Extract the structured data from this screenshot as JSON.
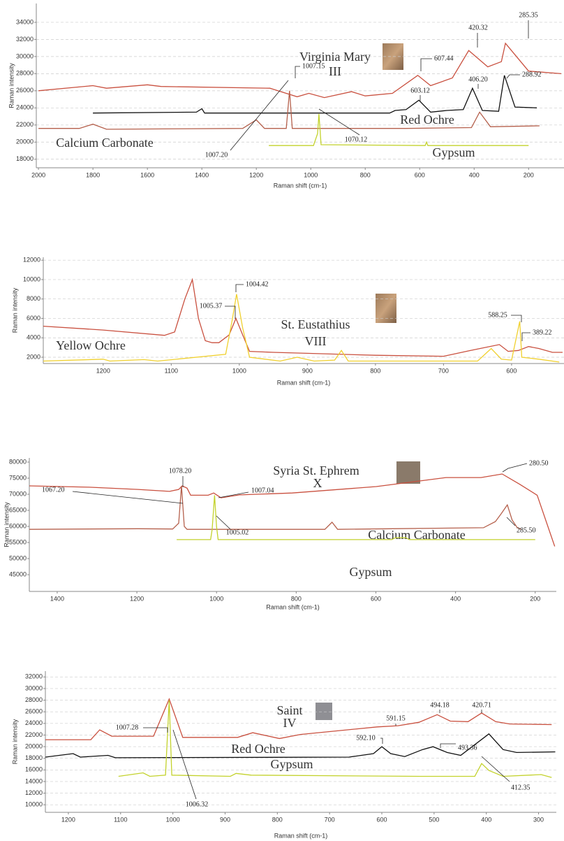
{
  "chart_data": [
    {
      "type": "line",
      "x_label": "Raman shift (cm-1)",
      "y_label": "Raman intensity",
      "xlim": [
        2008,
        70
      ],
      "ylim": [
        17000,
        36200
      ],
      "xticks": [
        2000,
        1800,
        1600,
        1400,
        1200,
        1000,
        800,
        600,
        400,
        200
      ],
      "yticks": [
        18000,
        20000,
        22000,
        24000,
        26000,
        28000,
        30000,
        32000,
        34000
      ],
      "grid": true,
      "series": [
        {
          "name": [
            "Virginia Mary",
            "III"
          ],
          "color": "#c9503f",
          "x": [
            2000,
            1800,
            1750,
            1600,
            1550,
            1150,
            1050,
            1007,
            950,
            850,
            800,
            700,
            607,
            560,
            480,
            420,
            350,
            300,
            285,
            200,
            80
          ],
          "values": [
            26000,
            26600,
            26300,
            26700,
            26500,
            26300,
            25300,
            25700,
            25200,
            25900,
            25400,
            25700,
            27800,
            26600,
            27500,
            30700,
            28800,
            29400,
            31550,
            28300,
            28000
          ]
        },
        {
          "name": "Red Ochre",
          "color": "#111111",
          "x": [
            1800,
            1420,
            1400,
            1390,
            710,
            690,
            650,
            603,
            560,
            500,
            440,
            406,
            370,
            310,
            289,
            250,
            170
          ],
          "values": [
            23400,
            23500,
            23900,
            23400,
            23400,
            23700,
            23800,
            24900,
            23500,
            23700,
            23800,
            26300,
            23700,
            23600,
            27800,
            24100,
            24000
          ]
        },
        {
          "name": "Calcium Carbonate",
          "color": "#b5604c",
          "x": [
            2000,
            1850,
            1800,
            1750,
            1250,
            1200,
            1170,
            1090,
            1078,
            1068,
            650,
            410,
            380,
            340,
            160
          ],
          "values": [
            21600,
            21600,
            22100,
            21500,
            21600,
            22600,
            21600,
            21600,
            26000,
            21600,
            21600,
            21700,
            23500,
            21800,
            21900
          ]
        },
        {
          "name": "Gypsum",
          "color": "#c3d22c",
          "x": [
            1154,
            990,
            975,
            970,
            962,
            580,
            575,
            570,
            200
          ],
          "values": [
            19600,
            19600,
            21000,
            23300,
            19700,
            19600,
            20000,
            19600,
            19600
          ]
        }
      ],
      "annotations": [
        "420.32",
        "285.35",
        "607.44",
        "1007.15",
        "603.12",
        "406.20",
        "288.92",
        "1070.12",
        "1007.20"
      ]
    },
    {
      "type": "line",
      "x_label": "Raman shift (cm-1)",
      "y_label": "Raman intensity",
      "xlim": [
        1288,
        523
      ],
      "ylim": [
        1350,
        12300
      ],
      "xticks": [
        1200,
        1100,
        1000,
        900,
        800,
        700,
        600
      ],
      "yticks": [
        2000,
        4000,
        6000,
        8000,
        10000,
        12000
      ],
      "grid": true,
      "series": [
        {
          "name": [
            "St. Eustathius",
            "VIII"
          ],
          "color": "#c9503f",
          "x": [
            1288,
            1200,
            1110,
            1095,
            1080,
            1069,
            1060,
            1050,
            1040,
            1030,
            1015,
            1005,
            995,
            985,
            950,
            800,
            700,
            660,
            618,
            605,
            590,
            575,
            560,
            540,
            525
          ],
          "values": [
            5200,
            4800,
            4250,
            4600,
            8000,
            10000,
            6000,
            3700,
            3500,
            3500,
            4300,
            6000,
            4300,
            2600,
            2500,
            2200,
            2100,
            2700,
            3300,
            2600,
            2700,
            3100,
            2900,
            2500,
            2500
          ]
        },
        {
          "name": "Yellow Ochre",
          "color": "#f0d02e",
          "x": [
            1288,
            1200,
            1190,
            1140,
            1120,
            1020,
            1010,
            1004,
            995,
            985,
            940,
            915,
            890,
            860,
            850,
            840,
            650,
            630,
            615,
            600,
            588,
            585,
            560,
            530
          ],
          "values": [
            1600,
            1800,
            1600,
            1750,
            1600,
            2300,
            6000,
            8500,
            5000,
            2000,
            1600,
            2000,
            1600,
            1700,
            2700,
            1600,
            1600,
            2900,
            1800,
            1700,
            5700,
            2000,
            1800,
            1500
          ]
        }
      ],
      "annotations": [
        "1004.42",
        "1005.37",
        "588.25",
        "389.22"
      ]
    },
    {
      "type": "line",
      "x_label": "Raman shift (cm-1)",
      "y_label": "Raman intensity",
      "xlim": [
        1470,
        147
      ],
      "ylim": [
        39800,
        81300
      ],
      "xticks": [
        1400,
        1200,
        1000,
        800,
        600,
        400,
        200
      ],
      "yticks": [
        45000,
        50000,
        55000,
        60000,
        65000,
        70000,
        75000,
        80000
      ],
      "grid": false,
      "series": [
        {
          "name": [
            "Syria St. Ephrem",
            "X"
          ],
          "color": "#c9503f",
          "x": [
            1470,
            1320,
            1197,
            1118,
            1095,
            1086,
            1074,
            1065,
            1021,
            1007,
            989,
            942,
            810,
            599,
            424,
            336,
            283,
            239,
            195,
            151
          ],
          "values": [
            72600,
            72200,
            71500,
            70900,
            71500,
            72600,
            71900,
            69700,
            69700,
            70400,
            68900,
            69800,
            70400,
            72400,
            75200,
            75200,
            76300,
            73100,
            69700,
            53800
          ]
        },
        {
          "name": "Calcium Carbonate",
          "color": "#b5604c",
          "x": [
            1470,
            1197,
            1110,
            1095,
            1088,
            1081,
            1074,
            728,
            710,
            696,
            560,
            330,
            300,
            285,
            270,
            258,
            245,
            235
          ],
          "values": [
            59100,
            59300,
            59200,
            61000,
            72600,
            60000,
            59100,
            59100,
            61300,
            59100,
            59300,
            59600,
            61500,
            64000,
            66700,
            62000,
            59600,
            59100
          ]
        },
        {
          "name": "Gypsum",
          "color": "#c3d22c",
          "x": [
            1100,
            1015,
            1011,
            1005,
            1000,
            996,
            560,
            551,
            525,
            516,
            200
          ],
          "values": [
            55900,
            55900,
            59000,
            69700,
            60000,
            55900,
            55900,
            56500,
            56500,
            55900,
            55900
          ]
        }
      ],
      "annotations": [
        "1078.20",
        "1067.20",
        "1007.04",
        "1005.02",
        "280.50",
        "285.50"
      ]
    },
    {
      "type": "line",
      "x_label": "Raman shift (cm-1)",
      "y_label": "Raman intensity",
      "xlim": [
        1244,
        266
      ],
      "ylim": [
        8700,
        33000
      ],
      "xticks": [
        1200,
        1100,
        1000,
        900,
        800,
        700,
        600,
        500,
        400,
        300
      ],
      "yticks": [
        10000,
        12000,
        14000,
        16000,
        18000,
        20000,
        22000,
        24000,
        26000,
        28000,
        30000,
        32000
      ],
      "grid": true,
      "series": [
        {
          "name": [
            "Saint",
            "IV"
          ],
          "color": "#c9503f",
          "x": [
            1244,
            1157,
            1140,
            1117,
            1037,
            1007,
            981,
            876,
            847,
            796,
            756,
            609,
            569,
            529,
            494,
            469,
            435,
            409,
            382,
            355,
            275
          ],
          "values": [
            21200,
            21200,
            22900,
            21800,
            21800,
            28200,
            21600,
            21600,
            22400,
            21400,
            22100,
            23400,
            23600,
            24200,
            25500,
            24400,
            24300,
            25800,
            24300,
            23900,
            23800
          ]
        },
        {
          "name": "Red Ochre",
          "color": "#111111",
          "x": [
            1244,
            1191,
            1177,
            1124,
            1110,
            663,
            616,
            600,
            583,
            556,
            522,
            502,
            475,
            449,
            395,
            368,
            342,
            268
          ],
          "values": [
            18200,
            18800,
            18200,
            18500,
            18100,
            18200,
            18800,
            20000,
            18800,
            18300,
            19500,
            20000,
            19000,
            18500,
            22200,
            19500,
            19000,
            19100
          ]
        },
        {
          "name": "Gypsum",
          "color": "#c3d22c",
          "x": [
            1104,
            1057,
            1044,
            1014,
            1007,
            1002,
            890,
            879,
            850,
            529,
            422,
            409,
            395,
            368,
            295,
            275
          ],
          "values": [
            14900,
            15500,
            14900,
            15100,
            28000,
            15100,
            14900,
            15400,
            15100,
            14900,
            14900,
            17100,
            15900,
            14900,
            15200,
            14700
          ]
        }
      ],
      "annotations": [
        "1007.28",
        "1006.32",
        "591.15",
        "494.18",
        "420.71",
        "592.10",
        "493.36",
        "412.35"
      ]
    }
  ]
}
